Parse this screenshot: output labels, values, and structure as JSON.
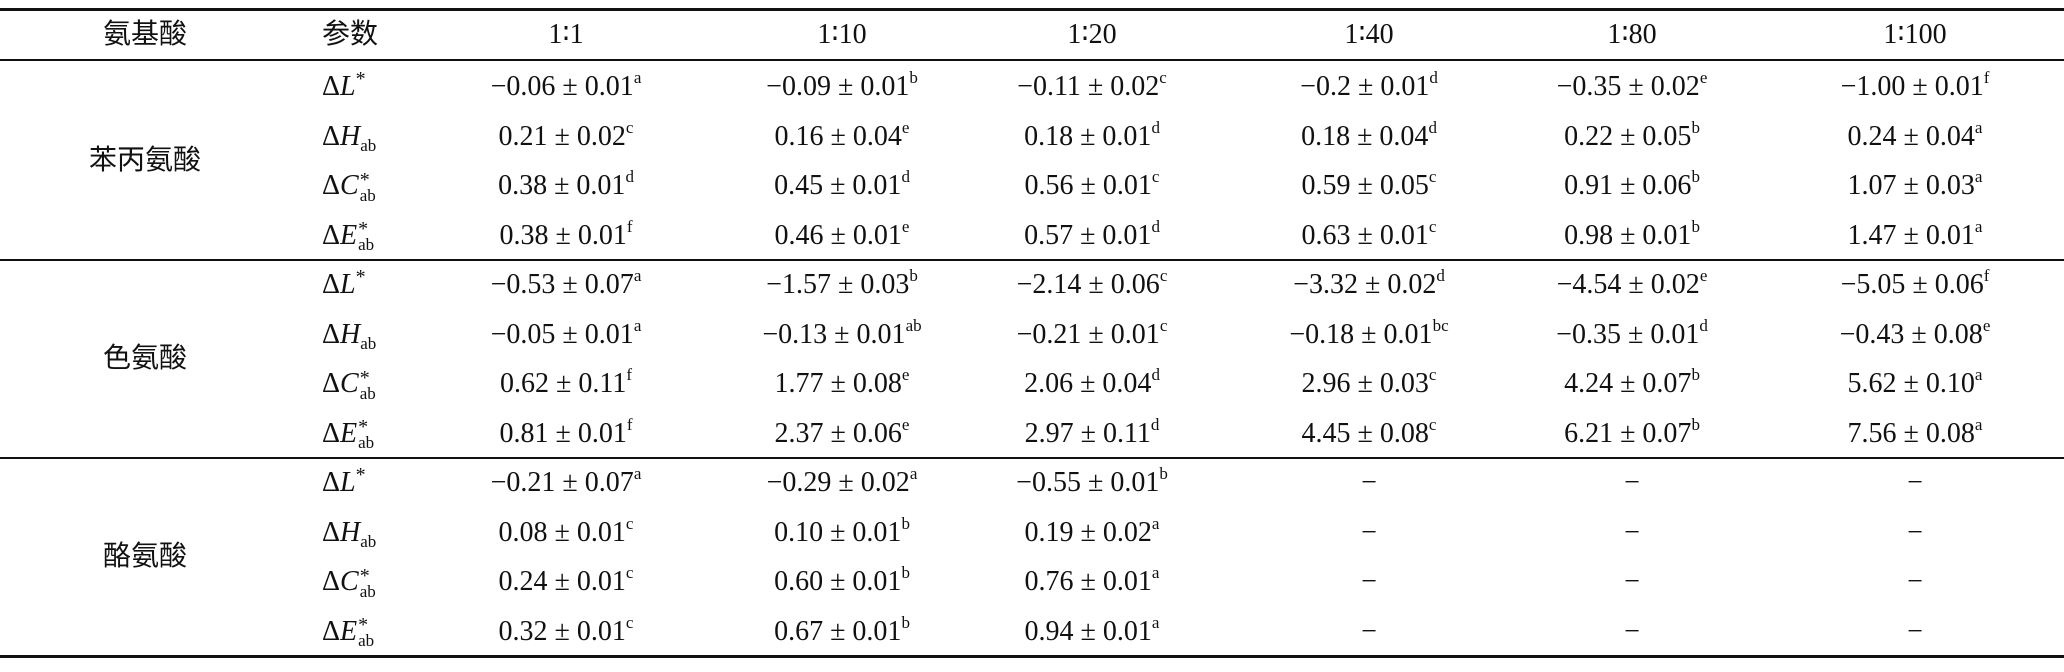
{
  "table": {
    "header": [
      "氨基酸",
      "参数",
      "1∶1",
      "1∶10",
      "1∶20",
      "1∶40",
      "1∶80",
      "1∶100"
    ],
    "groups": [
      {
        "name": "苯丙氨酸",
        "rows": [
          {
            "param": {
              "prefix": "Δ",
              "var": "L",
              "sup": "*"
            },
            "cells": [
              {
                "value": "−0.06 ± 0.01",
                "sup": "a"
              },
              {
                "value": "−0.09 ± 0.01",
                "sup": "b"
              },
              {
                "value": "−0.11 ± 0.02",
                "sup": "c"
              },
              {
                "value": "−0.2 ± 0.01",
                "sup": "d"
              },
              {
                "value": "−0.35 ± 0.02",
                "sup": "e"
              },
              {
                "value": "−1.00 ± 0.01",
                "sup": "f"
              }
            ]
          },
          {
            "param": {
              "prefix": "Δ",
              "var": "H",
              "sub": "ab"
            },
            "cells": [
              {
                "value": "0.21 ± 0.02",
                "sup": "c"
              },
              {
                "value": "0.16 ± 0.04",
                "sup": "e"
              },
              {
                "value": "0.18 ± 0.01",
                "sup": "d"
              },
              {
                "value": "0.18 ± 0.04",
                "sup": "d"
              },
              {
                "value": "0.22 ± 0.05",
                "sup": "b"
              },
              {
                "value": "0.24 ± 0.04",
                "sup": "a"
              }
            ]
          },
          {
            "param": {
              "prefix": "Δ",
              "var": "C",
              "sup": "*",
              "sub": "ab"
            },
            "cells": [
              {
                "value": "0.38 ± 0.01",
                "sup": "d"
              },
              {
                "value": "0.45 ± 0.01",
                "sup": "d"
              },
              {
                "value": "0.56 ± 0.01",
                "sup": "c"
              },
              {
                "value": "0.59 ± 0.05",
                "sup": "c"
              },
              {
                "value": "0.91 ± 0.06",
                "sup": "b"
              },
              {
                "value": "1.07 ± 0.03",
                "sup": "a"
              }
            ]
          },
          {
            "param": {
              "prefix": "Δ",
              "var": "E",
              "sup": "*",
              "sub": "ab"
            },
            "cells": [
              {
                "value": "0.38 ± 0.01",
                "sup": "f"
              },
              {
                "value": "0.46 ± 0.01",
                "sup": "e"
              },
              {
                "value": "0.57 ± 0.01",
                "sup": "d"
              },
              {
                "value": "0.63 ± 0.01",
                "sup": "c"
              },
              {
                "value": "0.98 ± 0.01",
                "sup": "b"
              },
              {
                "value": "1.47 ± 0.01",
                "sup": "a"
              }
            ]
          }
        ]
      },
      {
        "name": "色氨酸",
        "rows": [
          {
            "param": {
              "prefix": "Δ",
              "var": "L",
              "sup": "*"
            },
            "cells": [
              {
                "value": "−0.53 ± 0.07",
                "sup": "a"
              },
              {
                "value": "−1.57 ± 0.03",
                "sup": "b"
              },
              {
                "value": "−2.14 ± 0.06",
                "sup": "c"
              },
              {
                "value": "−3.32 ± 0.02",
                "sup": "d"
              },
              {
                "value": "−4.54 ± 0.02",
                "sup": "e"
              },
              {
                "value": "−5.05 ± 0.06",
                "sup": "f"
              }
            ]
          },
          {
            "param": {
              "prefix": "Δ",
              "var": "H",
              "sub": "ab"
            },
            "cells": [
              {
                "value": "−0.05 ± 0.01",
                "sup": "a"
              },
              {
                "value": "−0.13 ± 0.01",
                "sup": "ab"
              },
              {
                "value": "−0.21 ± 0.01",
                "sup": "c"
              },
              {
                "value": "−0.18 ± 0.01",
                "sup": "bc"
              },
              {
                "value": "−0.35 ± 0.01",
                "sup": "d"
              },
              {
                "value": "−0.43 ± 0.08",
                "sup": "e"
              }
            ]
          },
          {
            "param": {
              "prefix": "Δ",
              "var": "C",
              "sup": "*",
              "sub": "ab"
            },
            "cells": [
              {
                "value": "0.62 ± 0.11",
                "sup": "f"
              },
              {
                "value": "1.77 ± 0.08",
                "sup": "e"
              },
              {
                "value": "2.06 ± 0.04",
                "sup": "d"
              },
              {
                "value": "2.96 ± 0.03",
                "sup": "c"
              },
              {
                "value": "4.24 ± 0.07",
                "sup": "b"
              },
              {
                "value": "5.62 ± 0.10",
                "sup": "a"
              }
            ]
          },
          {
            "param": {
              "prefix": "Δ",
              "var": "E",
              "sup": "*",
              "sub": "ab"
            },
            "cells": [
              {
                "value": "0.81 ± 0.01",
                "sup": "f"
              },
              {
                "value": "2.37 ± 0.06",
                "sup": "e"
              },
              {
                "value": "2.97 ± 0.11",
                "sup": "d"
              },
              {
                "value": "4.45 ± 0.08",
                "sup": "c"
              },
              {
                "value": "6.21 ± 0.07",
                "sup": "b"
              },
              {
                "value": "7.56 ± 0.08",
                "sup": "a"
              }
            ]
          }
        ]
      },
      {
        "name": "酪氨酸",
        "rows": [
          {
            "param": {
              "prefix": "Δ",
              "var": "L",
              "sup": "*"
            },
            "cells": [
              {
                "value": "−0.21 ± 0.07",
                "sup": "a"
              },
              {
                "value": "−0.29 ± 0.02",
                "sup": "a"
              },
              {
                "value": "−0.55 ± 0.01",
                "sup": "b"
              },
              {
                "value": "−"
              },
              {
                "value": "−"
              },
              {
                "value": "−"
              }
            ]
          },
          {
            "param": {
              "prefix": "Δ",
              "var": "H",
              "sub": "ab"
            },
            "cells": [
              {
                "value": "0.08 ± 0.01",
                "sup": "c"
              },
              {
                "value": "0.10 ± 0.01",
                "sup": "b"
              },
              {
                "value": "0.19 ± 0.02",
                "sup": "a"
              },
              {
                "value": "−"
              },
              {
                "value": "−"
              },
              {
                "value": "−"
              }
            ]
          },
          {
            "param": {
              "prefix": "Δ",
              "var": "C",
              "sup": "*",
              "sub": "ab"
            },
            "cells": [
              {
                "value": "0.24 ± 0.01",
                "sup": "c"
              },
              {
                "value": "0.60 ± 0.01",
                "sup": "b"
              },
              {
                "value": "0.76 ± 0.01",
                "sup": "a"
              },
              {
                "value": "−"
              },
              {
                "value": "−"
              },
              {
                "value": "−"
              }
            ]
          },
          {
            "param": {
              "prefix": "Δ",
              "var": "E",
              "sup": "*",
              "sub": "ab"
            },
            "cells": [
              {
                "value": "0.32 ± 0.01",
                "sup": "c"
              },
              {
                "value": "0.67 ± 0.01",
                "sup": "b"
              },
              {
                "value": "0.94 ± 0.01",
                "sup": "a"
              },
              {
                "value": "−"
              },
              {
                "value": "−"
              },
              {
                "value": "−"
              }
            ]
          }
        ]
      }
    ]
  }
}
